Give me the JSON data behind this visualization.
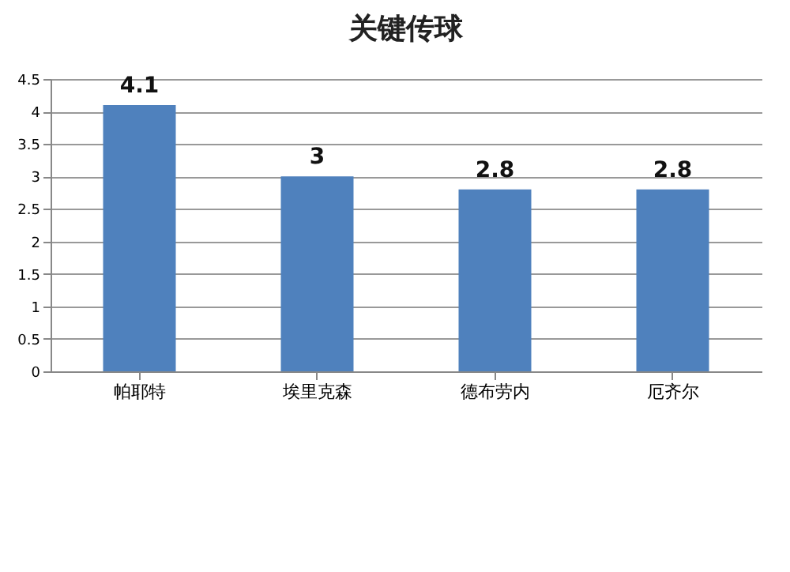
{
  "chart_data": {
    "type": "bar",
    "title": "关键传球",
    "categories": [
      "帕耶特",
      "埃里克森",
      "德布劳内",
      "厄齐尔"
    ],
    "values": [
      4.1,
      3,
      2.8,
      2.8
    ],
    "color": "#4f81bd",
    "ylim": [
      0,
      4.5
    ],
    "yticks": [
      0,
      0.5,
      1,
      1.5,
      2,
      2.5,
      3,
      3.5,
      4,
      4.5
    ],
    "grid": "y",
    "data_labels": true
  }
}
